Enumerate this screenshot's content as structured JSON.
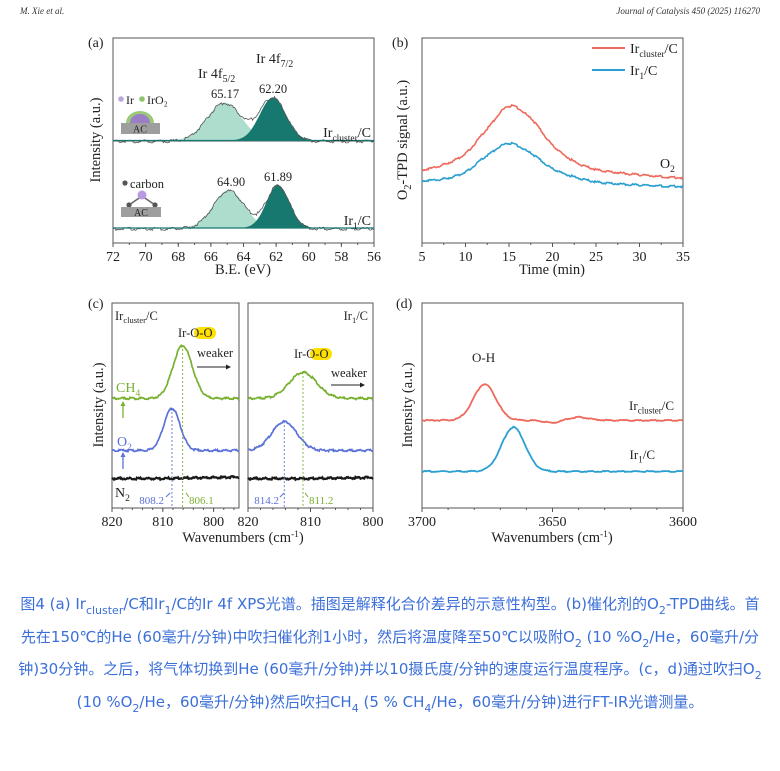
{
  "header": {
    "authors": "M. Xie et al.",
    "journal": "Journal of Catalysis 450 (2025) 116270"
  },
  "colors": {
    "teal_light": "#a9dcca",
    "teal_dark": "#17786f",
    "red": "#ee6a5c",
    "blue": "#2a9fd0",
    "green": "#78b030",
    "violet_blue": "#5b72d8",
    "caption": "#3b6fd9",
    "highlight": "#ffe000"
  },
  "panels": {
    "a": {
      "tag": "(a)",
      "peak1_main": "Ir 4f",
      "peak1_sub": "5/2",
      "peak2_main": "Ir 4f",
      "peak2_sub": "7/2",
      "v1": "65.17",
      "v2": "62.20",
      "v3": "64.90",
      "v4": "61.89",
      "s1_main": "Ir",
      "s1_sub": "cluster",
      "s1_tail": "/C",
      "s2_main": "Ir",
      "s2_sub": "1",
      "s2_tail": "/C",
      "legend_ir": "Ir",
      "legend_iro2": "IrO₂",
      "legend_carbon": "carbon",
      "support1": "AC",
      "support2": "AC"
    },
    "b": {
      "tag": "(b)",
      "gas_main": "O",
      "gas_sub": "2"
    },
    "c": {
      "tag": "(c)",
      "left_main": "Ir",
      "left_sub": "cluster",
      "left_tail": "/C",
      "right_main": "Ir",
      "right_sub": "1",
      "right_tail": "/C",
      "iroo_ir": "Ir-",
      "iroo_oo": "O-O",
      "weaker": "weaker",
      "ch4_main": "CH",
      "ch4_sub": "4",
      "o2_main": "O",
      "o2_sub": "2",
      "n2_main": "N",
      "n2_sub": "2",
      "m1": "808.2",
      "m2": "806.1",
      "m3": "814.2",
      "m4": "811.2"
    },
    "d": {
      "tag": "(d)",
      "oh": "O-H",
      "s1_main": "Ir",
      "s1_sub": "cluster",
      "s1_tail": "/C",
      "s2_main": "Ir",
      "s2_sub": "1",
      "s2_tail": "/C"
    }
  },
  "chart_data": [
    {
      "panel": "a",
      "type": "area",
      "xlabel": "B.E. (eV)",
      "ylabel": "Intensity (a.u.)",
      "xlim": [
        72,
        56
      ],
      "ylim": [
        0,
        100
      ],
      "xticks": [
        72,
        70,
        68,
        66,
        64,
        62,
        60,
        58,
        56
      ],
      "series": [
        {
          "name": "Ircluster/C",
          "baseline": 50,
          "peaks": [
            {
              "label": "Ir 4f5/2",
              "center": 65.17,
              "height": 18.5,
              "sigma": 1.05
            },
            {
              "label": "Ir 4f7/2",
              "center": 62.2,
              "height": 21,
              "sigma": 0.8
            }
          ]
        },
        {
          "name": "Ir1/C",
          "baseline": 7.3,
          "peaks": [
            {
              "label": "Ir 4f5/2",
              "center": 64.9,
              "height": 18.5,
              "sigma": 0.95
            },
            {
              "label": "Ir 4f7/2",
              "center": 61.89,
              "height": 21,
              "sigma": 0.7
            }
          ]
        }
      ]
    },
    {
      "panel": "b",
      "type": "line",
      "xlabel": "Time (min)",
      "ylabel": "O2-TPD signal (a.u.)",
      "xlim": [
        5,
        35
      ],
      "ylim": [
        0,
        100
      ],
      "xticks": [
        5,
        10,
        15,
        20,
        25,
        30,
        35
      ],
      "legend": "top-right",
      "x": [
        5,
        7.5,
        10,
        12.5,
        15,
        17.5,
        20,
        22.5,
        25,
        30,
        35
      ],
      "series": [
        {
          "name": "Ircluster/C",
          "values": [
            36,
            38.5,
            44,
            56,
            67,
            61,
            48,
            40,
            36,
            33.5,
            32
          ]
        },
        {
          "name": "Ir1/C",
          "values": [
            30.7,
            31.5,
            35,
            43,
            48.8,
            44,
            36.5,
            32.5,
            30,
            28.5,
            27.8
          ]
        }
      ]
    },
    {
      "panel": "c-left",
      "type": "line",
      "xlabel": "Wavenumbers (cm-1)",
      "ylabel": "Intensity (a.u.)",
      "xlim": [
        820,
        795
      ],
      "ylim": [
        0,
        100
      ],
      "xticks": [
        820,
        810,
        800
      ],
      "series": [
        {
          "name": "CH4",
          "baseline": 53.7,
          "peaks": [
            {
              "center": 806.1,
              "height": 25.8,
              "sigma": 1.9
            }
          ]
        },
        {
          "name": "O2",
          "baseline": 28.3,
          "peaks": [
            {
              "center": 808.2,
              "height": 20.5,
              "sigma": 1.6
            }
          ]
        },
        {
          "name": "N2",
          "baseline": 14.6,
          "peaks": []
        }
      ]
    },
    {
      "panel": "c-right",
      "type": "line",
      "xlim": [
        820,
        800
      ],
      "ylim": [
        0,
        100
      ],
      "xticks": [
        820,
        810,
        800
      ],
      "series": [
        {
          "name": "CH4",
          "baseline": 53.7,
          "peaks": [
            {
              "center": 811.2,
              "height": 12.7,
              "sigma": 2.2
            }
          ]
        },
        {
          "name": "O2",
          "baseline": 28.3,
          "peaks": [
            {
              "center": 814.2,
              "height": 14.1,
              "sigma": 2.0
            }
          ]
        },
        {
          "name": "N2",
          "baseline": 14.6,
          "peaks": []
        }
      ]
    },
    {
      "panel": "d",
      "type": "line",
      "xlabel": "Wavenumbers (cm-1)",
      "ylabel": "Intensity (a.u.)",
      "xlim": [
        3700,
        3600
      ],
      "ylim": [
        0,
        100
      ],
      "xticks": [
        3700,
        3650,
        3600
      ],
      "series": [
        {
          "name": "Ircluster/C",
          "baseline": 42.9,
          "peaks": [
            {
              "center": 3676,
              "height": 17.6,
              "sigma": 4.3
            },
            {
              "center": 3650,
              "height": -1.2,
              "sigma": 3
            },
            {
              "center": 3640,
              "height": 1.5,
              "sigma": 4
            }
          ]
        },
        {
          "name": "Ir1/C",
          "baseline": 18,
          "peaks": [
            {
              "center": 3665,
              "height": 21.5,
              "sigma": 4.5
            }
          ]
        }
      ]
    }
  ],
  "caption": [
    {
      "t": "图4 (a) Ir"
    },
    {
      "s": "cluster"
    },
    {
      "t": "/C和Ir"
    },
    {
      "s": "1"
    },
    {
      "t": "/C的Ir 4f XPS光谱。插图是解释化合价差异的示意性构型。(b)催化剂的O"
    },
    {
      "s": "2"
    },
    {
      "t": "-TPD曲线。首先在150℃的He (60毫升/分钟)中吹扫催化剂1小时，然后将温度降至50℃以吸附O"
    },
    {
      "s": "2"
    },
    {
      "t": " (10 %O"
    },
    {
      "s": "2"
    },
    {
      "t": "/He，60毫升/分钟)30分钟。之后，将气体切换到He (60毫升/分钟)并以10摄氏度/分钟的速度运行温度程序。(c，d)通过吹扫O"
    },
    {
      "s": "2"
    },
    {
      "t": " (10 %O"
    },
    {
      "s": "2"
    },
    {
      "t": "/He，60毫升/分钟)然后吹扫CH"
    },
    {
      "s": "4"
    },
    {
      "t": " (5 % CH"
    },
    {
      "s": "4"
    },
    {
      "t": "/He，60毫升/分钟)进行FT-IR光谱测量。"
    }
  ]
}
